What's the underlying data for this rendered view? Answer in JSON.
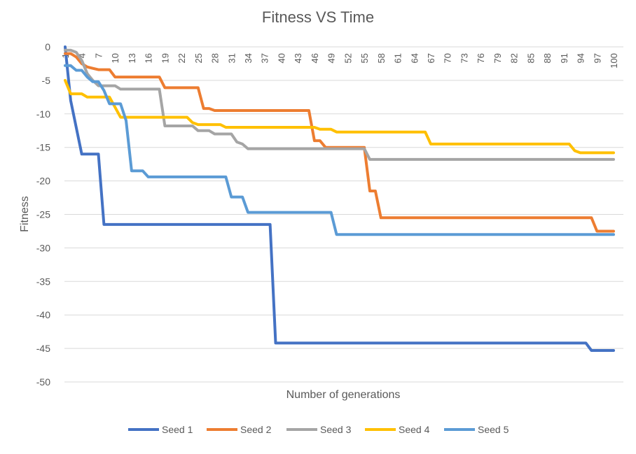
{
  "chart_data": {
    "type": "line",
    "title": "Fitness VS Time",
    "xlabel": "Number of generations",
    "ylabel": "Fitness",
    "xlim": [
      1,
      100
    ],
    "ylim": [
      -50,
      0
    ],
    "yticks": [
      0,
      -5,
      -10,
      -15,
      -20,
      -25,
      -30,
      -35,
      -40,
      -45,
      -50
    ],
    "xticks": [
      1,
      4,
      7,
      10,
      13,
      16,
      19,
      22,
      25,
      28,
      31,
      34,
      37,
      40,
      43,
      46,
      49,
      52,
      55,
      58,
      61,
      64,
      67,
      70,
      73,
      76,
      79,
      82,
      85,
      88,
      91,
      94,
      97,
      100
    ],
    "grid": true,
    "legend_position": "bottom",
    "series": [
      {
        "name": "Seed 1",
        "color": "#4472C4",
        "points": [
          [
            1,
            0
          ],
          [
            2,
            -8
          ],
          [
            3,
            -12
          ],
          [
            4,
            -16
          ],
          [
            5,
            -16
          ],
          [
            6,
            -16
          ],
          [
            7,
            -16
          ],
          [
            8,
            -26.5
          ],
          [
            9,
            -26.5
          ],
          [
            38,
            -26.5
          ],
          [
            39,
            -44.2
          ],
          [
            95,
            -44.2
          ],
          [
            96,
            -45.3
          ],
          [
            100,
            -45.3
          ]
        ]
      },
      {
        "name": "Seed 2",
        "color": "#ED7D31",
        "points": [
          [
            1,
            -1
          ],
          [
            2,
            -1
          ],
          [
            3,
            -1.5
          ],
          [
            4,
            -2.5
          ],
          [
            5,
            -3
          ],
          [
            6,
            -3.2
          ],
          [
            7,
            -3.4
          ],
          [
            9,
            -3.4
          ],
          [
            10,
            -4.5
          ],
          [
            18,
            -4.5
          ],
          [
            19,
            -6.1
          ],
          [
            25,
            -6.1
          ],
          [
            26,
            -9.2
          ],
          [
            27,
            -9.2
          ],
          [
            28,
            -9.5
          ],
          [
            45,
            -9.5
          ],
          [
            46,
            -14
          ],
          [
            47,
            -14
          ],
          [
            48,
            -15
          ],
          [
            55,
            -15
          ],
          [
            56,
            -21.5
          ],
          [
            57,
            -21.5
          ],
          [
            58,
            -25.5
          ],
          [
            96,
            -25.5
          ],
          [
            97,
            -27.5
          ],
          [
            100,
            -27.5
          ]
        ]
      },
      {
        "name": "Seed 3",
        "color": "#A5A5A5",
        "points": [
          [
            1,
            -0.5
          ],
          [
            2,
            -0.5
          ],
          [
            3,
            -0.8
          ],
          [
            4,
            -2
          ],
          [
            5,
            -4
          ],
          [
            6,
            -5
          ],
          [
            7,
            -5.8
          ],
          [
            9,
            -5.8
          ],
          [
            10,
            -5.8
          ],
          [
            11,
            -6.3
          ],
          [
            18,
            -6.3
          ],
          [
            19,
            -11.8
          ],
          [
            24,
            -11.8
          ],
          [
            25,
            -12.5
          ],
          [
            27,
            -12.5
          ],
          [
            28,
            -13
          ],
          [
            31,
            -13
          ],
          [
            32,
            -14.2
          ],
          [
            33,
            -14.5
          ],
          [
            34,
            -15.2
          ],
          [
            55,
            -15.2
          ],
          [
            56,
            -16.8
          ],
          [
            100,
            -16.8
          ]
        ]
      },
      {
        "name": "Seed 4",
        "color": "#FFC000",
        "points": [
          [
            1,
            -5
          ],
          [
            2,
            -7
          ],
          [
            4,
            -7
          ],
          [
            5,
            -7.5
          ],
          [
            9,
            -7.5
          ],
          [
            10,
            -9
          ],
          [
            11,
            -10.5
          ],
          [
            23,
            -10.5
          ],
          [
            24,
            -11.3
          ],
          [
            25,
            -11.6
          ],
          [
            29,
            -11.6
          ],
          [
            30,
            -12
          ],
          [
            46,
            -12
          ],
          [
            47,
            -12.3
          ],
          [
            49,
            -12.3
          ],
          [
            50,
            -12.7
          ],
          [
            66,
            -12.7
          ],
          [
            67,
            -14.5
          ],
          [
            92,
            -14.5
          ],
          [
            93,
            -15.5
          ],
          [
            94,
            -15.8
          ],
          [
            100,
            -15.8
          ]
        ]
      },
      {
        "name": "Seed 5",
        "color": "#5B9BD5",
        "points": [
          [
            1,
            -2.8
          ],
          [
            2,
            -2.8
          ],
          [
            3,
            -3.5
          ],
          [
            4,
            -3.5
          ],
          [
            5,
            -4.5
          ],
          [
            6,
            -5.2
          ],
          [
            7,
            -5.2
          ],
          [
            8,
            -6.5
          ],
          [
            9,
            -8.5
          ],
          [
            11,
            -8.5
          ],
          [
            12,
            -11
          ],
          [
            13,
            -18.5
          ],
          [
            15,
            -18.5
          ],
          [
            16,
            -19.4
          ],
          [
            30,
            -19.4
          ],
          [
            31,
            -22.4
          ],
          [
            33,
            -22.4
          ],
          [
            34,
            -24.7
          ],
          [
            49,
            -24.7
          ],
          [
            50,
            -28
          ],
          [
            100,
            -28
          ]
        ]
      }
    ]
  }
}
